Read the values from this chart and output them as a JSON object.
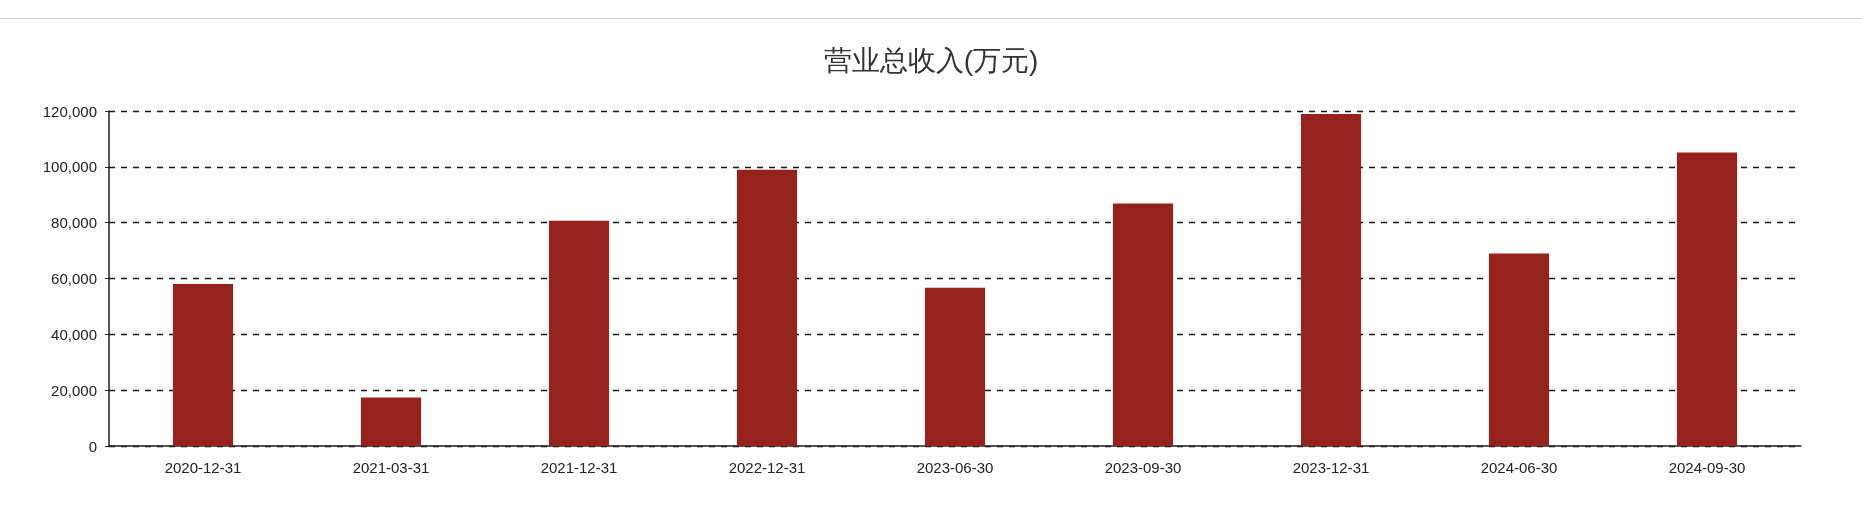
{
  "chart_data": {
    "type": "bar",
    "title": "营业总收入(万元)",
    "categories": [
      "2020-12-31",
      "2021-03-31",
      "2021-12-31",
      "2022-12-31",
      "2023-06-30",
      "2023-09-30",
      "2023-12-31",
      "2024-06-30",
      "2024-09-30"
    ],
    "values": [
      58000,
      17400,
      80700,
      99000,
      56700,
      86900,
      118900,
      69000,
      105100
    ],
    "color": "#96221d",
    "ylim": [
      0,
      120000
    ],
    "yticks": [
      {
        "value": 0,
        "label": "0"
      },
      {
        "value": 20000,
        "label": "20,000"
      },
      {
        "value": 40000,
        "label": "40,000"
      },
      {
        "value": 60000,
        "label": "60,000"
      },
      {
        "value": 80000,
        "label": "80,000"
      },
      {
        "value": 100000,
        "label": "100,000"
      },
      {
        "value": 120000,
        "label": "120,000"
      }
    ],
    "grid": "y"
  }
}
